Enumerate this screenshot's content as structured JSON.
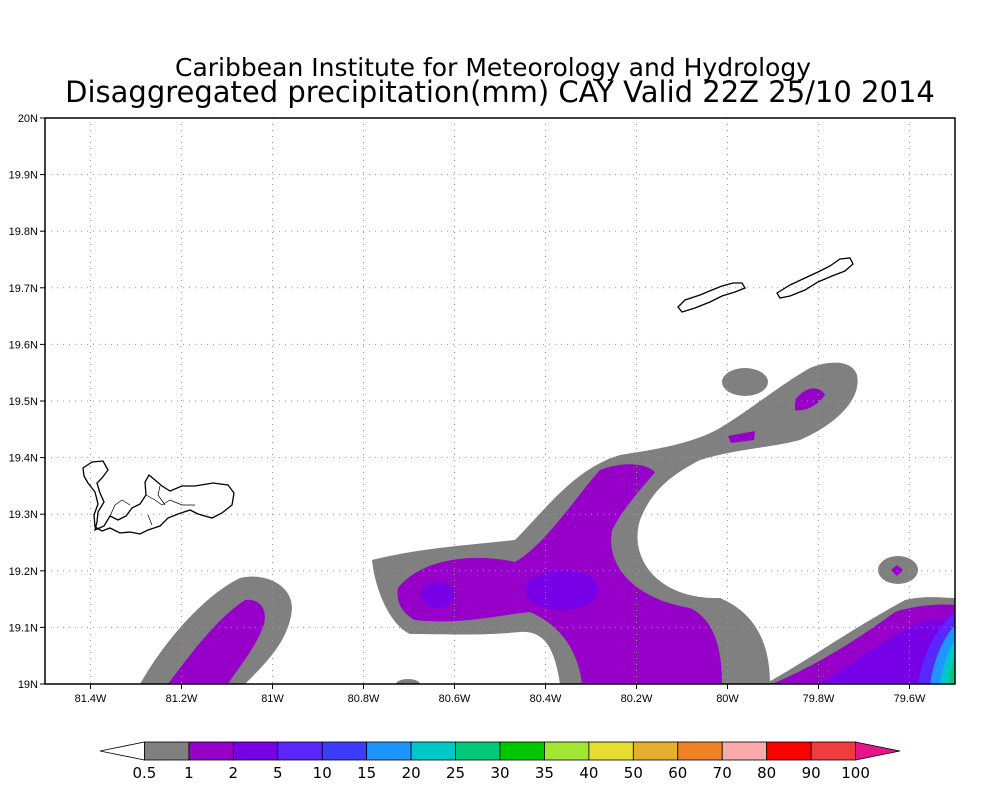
{
  "title": {
    "line1": "Caribbean Institute for Meteorology and Hydrology",
    "line2": "Disaggregated precipitation(mm) CAY Valid 22Z 25/10 2014"
  },
  "map": {
    "lon_range": [
      -81.5,
      -79.5
    ],
    "lat_range": [
      19.0,
      20.0
    ],
    "grid": true,
    "x_ticks": [
      {
        "lon": -81.4,
        "label": "81.4W"
      },
      {
        "lon": -81.2,
        "label": "81.2W"
      },
      {
        "lon": -81.0,
        "label": "81W"
      },
      {
        "lon": -80.8,
        "label": "80.8W"
      },
      {
        "lon": -80.6,
        "label": "80.6W"
      },
      {
        "lon": -80.4,
        "label": "80.4W"
      },
      {
        "lon": -80.2,
        "label": "80.2W"
      },
      {
        "lon": -80.0,
        "label": "80W"
      },
      {
        "lon": -79.8,
        "label": "79.8W"
      },
      {
        "lon": -79.6,
        "label": "79.6W"
      }
    ],
    "y_ticks": [
      {
        "lat": 19.0,
        "label": "19N"
      },
      {
        "lat": 19.1,
        "label": "19.1N"
      },
      {
        "lat": 19.2,
        "label": "19.2N"
      },
      {
        "lat": 19.3,
        "label": "19.3N"
      },
      {
        "lat": 19.4,
        "label": "19.4N"
      },
      {
        "lat": 19.5,
        "label": "19.5N"
      },
      {
        "lat": 19.6,
        "label": "19.6N"
      },
      {
        "lat": 19.7,
        "label": "19.7N"
      },
      {
        "lat": 19.8,
        "label": "19.8N"
      },
      {
        "lat": 19.9,
        "label": "19.9N"
      },
      {
        "lat": 20.0,
        "label": "20N"
      }
    ]
  },
  "colorbar": {
    "labels": [
      "0.5",
      "1",
      "2",
      "5",
      "10",
      "15",
      "20",
      "25",
      "30",
      "35",
      "40",
      "50",
      "60",
      "70",
      "80",
      "90",
      "100"
    ],
    "colors": [
      "#ffffff",
      "#808080",
      "#9600c8",
      "#7800e6",
      "#5a28ff",
      "#3c3cff",
      "#1e96ff",
      "#00c8c8",
      "#00c878",
      "#00c800",
      "#a0e632",
      "#e6dc32",
      "#e6af2d",
      "#f08228",
      "#faaaaa",
      "#ff0000",
      "#f03c3c",
      "#e6148c"
    ]
  },
  "precip_colors": {
    "gray": "#808080",
    "purple": "#9600c8",
    "violet": "#7800e6",
    "blue": "#5a28ff",
    "azure": "#1e96ff",
    "teal": "#00c8c8",
    "green": "#00c878"
  }
}
